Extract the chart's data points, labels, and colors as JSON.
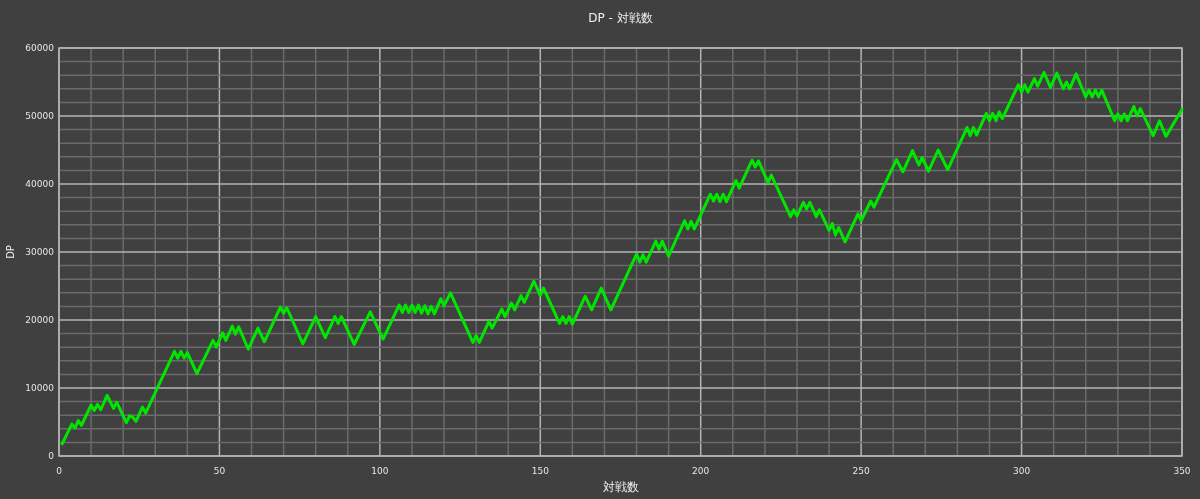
{
  "chart_data": {
    "type": "line",
    "title": "DP - 対戦数",
    "xlabel": "対戦数",
    "ylabel": "DP",
    "xlim": [
      0,
      350
    ],
    "ylim": [
      0,
      60000
    ],
    "xticks": [
      0,
      {
        "value": 10,
        "label": null
      },
      {
        "value": 20,
        "label": null
      },
      {
        "value": 30,
        "label": null
      },
      {
        "value": 40,
        "label": null
      },
      50,
      {
        "value": 60,
        "label": null
      },
      {
        "value": 70,
        "label": null
      },
      {
        "value": 80,
        "label": null
      },
      {
        "value": 90,
        "label": null
      },
      100,
      {
        "value": 110,
        "label": null
      },
      {
        "value": 120,
        "label": null
      },
      {
        "value": 130,
        "label": null
      },
      {
        "value": 140,
        "label": null
      },
      150,
      {
        "value": 160,
        "label": null
      },
      {
        "value": 170,
        "label": null
      },
      {
        "value": 180,
        "label": null
      },
      {
        "value": 190,
        "label": null
      },
      200,
      {
        "value": 210,
        "label": null
      },
      {
        "value": 220,
        "label": null
      },
      {
        "value": 230,
        "label": null
      },
      {
        "value": 240,
        "label": null
      },
      250,
      {
        "value": 260,
        "label": null
      },
      {
        "value": 270,
        "label": null
      },
      {
        "value": 280,
        "label": null
      },
      {
        "value": 290,
        "label": null
      },
      300,
      {
        "value": 310,
        "label": null
      },
      {
        "value": 320,
        "label": null
      },
      {
        "value": 330,
        "label": null
      },
      {
        "value": 340,
        "label": null
      },
      350
    ],
    "yticks": [
      0,
      {
        "value": 2000,
        "label": null
      },
      {
        "value": 4000,
        "label": null
      },
      {
        "value": 6000,
        "label": null
      },
      {
        "value": 8000,
        "label": null
      },
      10000,
      {
        "value": 12000,
        "label": null
      },
      {
        "value": 14000,
        "label": null
      },
      {
        "value": 16000,
        "label": null
      },
      {
        "value": 18000,
        "label": null
      },
      20000,
      {
        "value": 22000,
        "label": null
      },
      {
        "value": 24000,
        "label": null
      },
      {
        "value": 26000,
        "label": null
      },
      {
        "value": 28000,
        "label": null
      },
      30000,
      {
        "value": 32000,
        "label": null
      },
      {
        "value": 34000,
        "label": null
      },
      {
        "value": 36000,
        "label": null
      },
      {
        "value": 38000,
        "label": null
      },
      40000,
      {
        "value": 42000,
        "label": null
      },
      {
        "value": 44000,
        "label": null
      },
      {
        "value": 46000,
        "label": null
      },
      {
        "value": 48000,
        "label": null
      },
      50000,
      {
        "value": 52000,
        "label": null
      },
      {
        "value": 54000,
        "label": null
      },
      {
        "value": 56000,
        "label": null
      },
      {
        "value": 58000,
        "label": null
      },
      60000
    ],
    "grid": true,
    "series": [
      {
        "color": "#00e600",
        "x": [
          1,
          4,
          5,
          6,
          7,
          10,
          11,
          12,
          13,
          15,
          17,
          18,
          21,
          22,
          23,
          24,
          26,
          27,
          36,
          37,
          38,
          39,
          40,
          43,
          48,
          49,
          51,
          52,
          54,
          55,
          56,
          59,
          62,
          64,
          69,
          70,
          71,
          76,
          80,
          83,
          86,
          87,
          88,
          92,
          97,
          101,
          106,
          107,
          108,
          109,
          110,
          111,
          112,
          113,
          114,
          115,
          116,
          117,
          119,
          120,
          122,
          129,
          130,
          131,
          134,
          135,
          138,
          139,
          141,
          142,
          144,
          145,
          148,
          150,
          151,
          156,
          157,
          158,
          159,
          160,
          164,
          166,
          169,
          172,
          180,
          181,
          182,
          183,
          186,
          187,
          188,
          190,
          195,
          196,
          197,
          198,
          203,
          204,
          205,
          206,
          207,
          208,
          211,
          212,
          216,
          217,
          218,
          221,
          222,
          228,
          229,
          230,
          232,
          233,
          234,
          236,
          237,
          240,
          241,
          242,
          243,
          245,
          249,
          250,
          253,
          254,
          261,
          263,
          266,
          268,
          269,
          271,
          274,
          277,
          283,
          284,
          285,
          286,
          289,
          290,
          291,
          292,
          293,
          294,
          299,
          300,
          301,
          302,
          304,
          305,
          307,
          309,
          311,
          313,
          314,
          315,
          317,
          320,
          321,
          322,
          323,
          324,
          325,
          329,
          330,
          331,
          332,
          333,
          335,
          336,
          337,
          341,
          343,
          345,
          350
        ],
        "values": [
          1800,
          4700,
          4100,
          5200,
          4500,
          7500,
          6700,
          7600,
          6800,
          8900,
          7000,
          7900,
          4900,
          5900,
          5700,
          5100,
          7200,
          6300,
          15400,
          14400,
          15400,
          14400,
          15200,
          12100,
          17000,
          16000,
          18100,
          17000,
          19100,
          17900,
          19000,
          15700,
          18800,
          16800,
          21900,
          21000,
          21800,
          16500,
          20500,
          17400,
          20500,
          19500,
          20500,
          16400,
          21200,
          17200,
          22200,
          21100,
          22200,
          21100,
          22200,
          21100,
          22200,
          21000,
          22100,
          20900,
          22000,
          20900,
          23100,
          22100,
          24000,
          16700,
          17700,
          16700,
          19800,
          18800,
          21600,
          20500,
          22500,
          21500,
          23600,
          22600,
          25700,
          23600,
          24700,
          19500,
          20500,
          19500,
          20500,
          19400,
          23500,
          21500,
          24700,
          21500,
          29700,
          28500,
          29600,
          28500,
          31600,
          30400,
          31600,
          29400,
          34600,
          33400,
          34500,
          33400,
          38500,
          37500,
          38500,
          37400,
          38500,
          37400,
          40500,
          39400,
          43500,
          42500,
          43400,
          40200,
          41300,
          35200,
          36200,
          35300,
          37300,
          36300,
          37300,
          35200,
          36200,
          33200,
          34200,
          32500,
          33600,
          31500,
          35600,
          34600,
          37500,
          36600,
          43600,
          41800,
          44900,
          42800,
          43900,
          41900,
          45000,
          42100,
          48300,
          47100,
          48300,
          47200,
          50400,
          49300,
          50400,
          49300,
          50600,
          49600,
          54600,
          53500,
          54600,
          53500,
          55500,
          54400,
          56400,
          54200,
          56300,
          54000,
          55000,
          54000,
          56200,
          52800,
          53800,
          52800,
          53800,
          52800,
          53800,
          49300,
          50300,
          49300,
          50300,
          49300,
          51400,
          50000,
          51100,
          47100,
          49300,
          47000,
          51000
        ]
      }
    ]
  }
}
